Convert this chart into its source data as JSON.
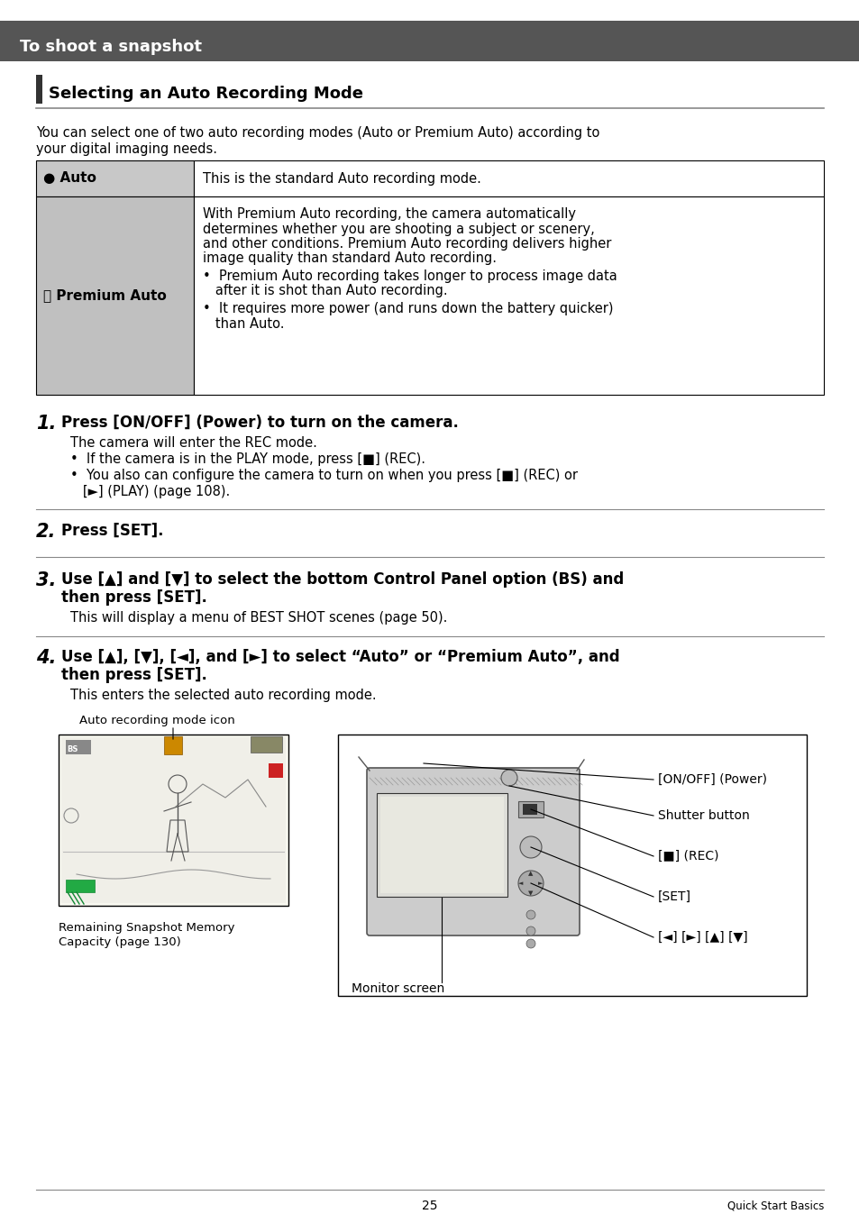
{
  "page_bg": "#ffffff",
  "header_bg": "#555555",
  "header_text": "To shoot a snapshot",
  "header_text_color": "#ffffff",
  "section_title": "Selecting an Auto Recording Mode",
  "section_bar_color": "#222222",
  "intro_line1": "You can select one of two auto recording modes (Auto or Premium Auto) according to",
  "intro_line2": "your digital imaging needs.",
  "auto_row_label": "● Auto",
  "auto_row_text": "This is the standard Auto recording mode.",
  "premium_row_label": "⓹ Premium Auto",
  "premium_p1": "With Premium Auto recording, the camera automatically",
  "premium_p2": "determines whether you are shooting a subject or scenery,",
  "premium_p3": "and other conditions. Premium Auto recording delivers higher",
  "premium_p4": "image quality than standard Auto recording.",
  "premium_b1a": "•  Premium Auto recording takes longer to process image data",
  "premium_b1b": "   after it is shot than Auto recording.",
  "premium_b2a": "•  It requires more power (and runs down the battery quicker)",
  "premium_b2b": "   than Auto.",
  "step1_num": "1.",
  "step1_bold": "Press [ON/OFF] (Power) to turn on the camera.",
  "step1_sub": "The camera will enter the REC mode.",
  "step1_b1": "•  If the camera is in the PLAY mode, press [■] (REC).",
  "step1_b2a": "•  You also can configure the camera to turn on when you press [■] (REC) or",
  "step1_b2b": "   [►] (PLAY) (page 108).",
  "step2_num": "2.",
  "step2_bold": "Press [SET].",
  "step3_num": "3.",
  "step3_bold1": "Use [▲] and [▼] to select the bottom Control Panel option (BS) and",
  "step3_bold2": "then press [SET].",
  "step3_sub": "This will display a menu of BEST SHOT scenes (page 50).",
  "step4_num": "4.",
  "step4_bold1": "Use [▲], [▼], [◄], and [►] to select “Auto” or “Premium Auto”, and",
  "step4_bold2": "then press [SET].",
  "step4_sub": "This enters the selected auto recording mode.",
  "caption_icon": "Auto recording mode icon",
  "caption_mem1": "Remaining Snapshot Memory",
  "caption_mem2": "Capacity (page 130)",
  "caption_r1": "[ON/OFF] (Power)",
  "caption_r2": "Shutter button",
  "caption_r3": "[■] (REC)",
  "caption_r4": "[SET]",
  "caption_r5": "[◄] [►] [▲] [▼]",
  "caption_monitor": "Monitor screen",
  "footer_page": "25",
  "footer_right": "Quick Start Basics"
}
